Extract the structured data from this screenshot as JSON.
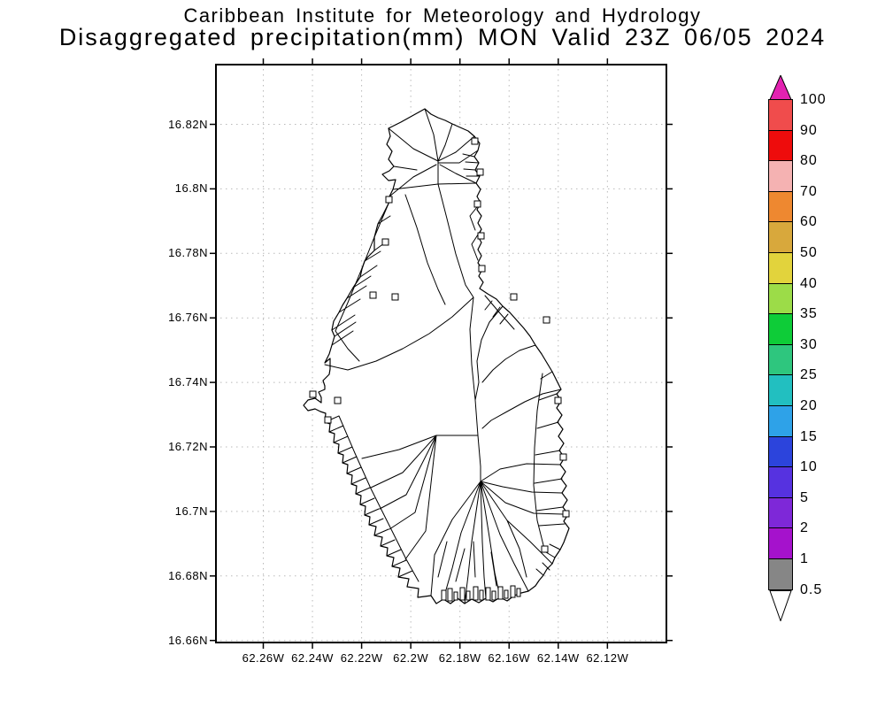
{
  "title": {
    "line1": "Caribbean Institute for Meteorology and Hydrology",
    "line2": "Disaggregated precipitation(mm) MON Valid 23Z 06/05 2024"
  },
  "map": {
    "y_ticks": [
      "16.82N",
      "16.8N",
      "16.78N",
      "16.76N",
      "16.74N",
      "16.72N",
      "16.7N",
      "16.68N",
      "16.66N"
    ],
    "x_ticks": [
      "62.26W",
      "62.24W",
      "62.22W",
      "62.2W",
      "62.18W",
      "62.16W",
      "62.14W",
      "62.12W"
    ],
    "frame_color": "#000000",
    "grid_color": "#b9b9b9"
  },
  "colorbar": {
    "top_arrow_color": "#e322b1",
    "bottom_arrow_color": "#ffffff",
    "segments": [
      {
        "label": "100",
        "color": "#f04c4c"
      },
      {
        "label": "90",
        "color": "#ee0c0c"
      },
      {
        "label": "80",
        "color": "#f5b2b2"
      },
      {
        "label": "70",
        "color": "#ee8830"
      },
      {
        "label": "60",
        "color": "#d8a83c"
      },
      {
        "label": "50",
        "color": "#e2d33c"
      },
      {
        "label": "40",
        "color": "#9cdc48"
      },
      {
        "label": "35",
        "color": "#0ecc38"
      },
      {
        "label": "30",
        "color": "#2ec67e"
      },
      {
        "label": "25",
        "color": "#22bfc0"
      },
      {
        "label": "20",
        "color": "#2ea2e8"
      },
      {
        "label": "15",
        "color": "#2c44dc"
      },
      {
        "label": "10",
        "color": "#5632e0"
      },
      {
        "label": "5",
        "color": "#7e28d8"
      },
      {
        "label": "2",
        "color": "#a512cc"
      },
      {
        "label": "1",
        "color": "#868686"
      }
    ],
    "bottom_label": "0.5"
  }
}
